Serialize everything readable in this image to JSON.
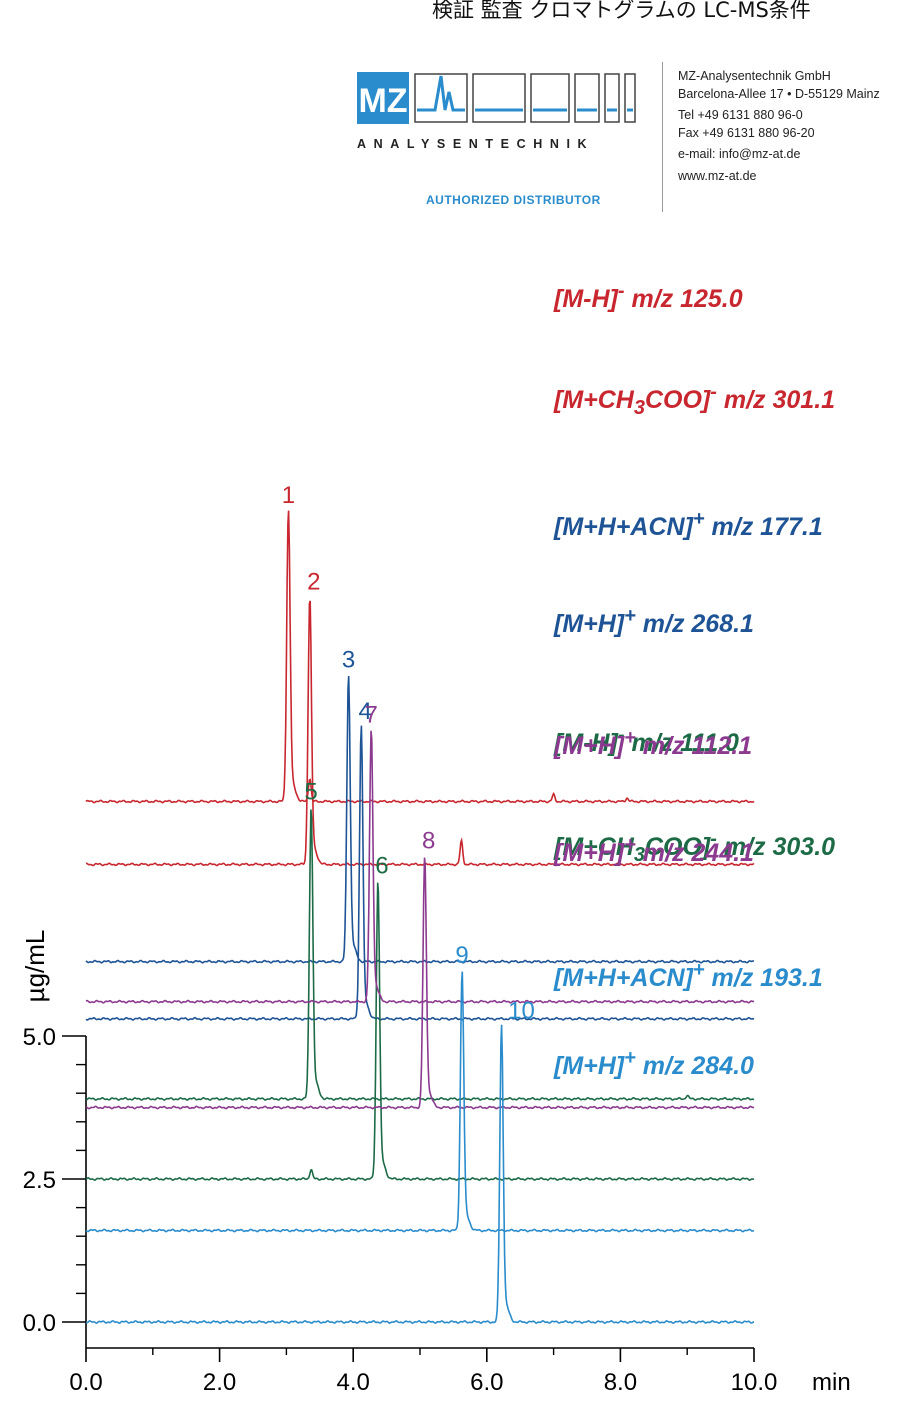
{
  "header": {
    "title": "検証 監査 クロマトグラムの LC-MS条件"
  },
  "distributor": {
    "brand_word": "ANALYSENTECHNIK",
    "tagline": "AUTHORIZED DISTRIBUTOR",
    "logo_letters": "MZ",
    "contact_lines": [
      "MZ-Analysentechnik GmbH",
      "Barcelona-Allee 17 • D-55129 Mainz",
      "Tel +49 6131 880 96-0",
      "Fax +49 6131 880 96-20",
      "e-mail: info@mz-at.de",
      "www.mz-at.de"
    ]
  },
  "colors": {
    "red": "#c8272f",
    "navy": "#1e5496",
    "green": "#1c6b46",
    "purple": "#8b3a8f",
    "cyan": "#2a8ccc",
    "axis": "#000000"
  },
  "chart_data": {
    "type": "line",
    "xlabel": "min",
    "ylabel": "µg/mL",
    "xlim": [
      0.0,
      10.0
    ],
    "ylim": [
      0.0,
      5.0
    ],
    "x_ticks": [
      "0.0",
      "2.0",
      "4.0",
      "6.0",
      "8.0",
      "10.0"
    ],
    "y_ticks": [
      "0.0",
      "2.5",
      "5.0"
    ],
    "series": [
      {
        "name": "[M-H]- m/z 125.0",
        "ion": "[M-H]",
        "charge": "-",
        "mz": "m/z 125.0",
        "color": "red",
        "baseline": 9.1,
        "peaks": [
          {
            "label": "1",
            "rt": 3.03,
            "height": 4.97
          },
          {
            "label": "",
            "rt": 3.35,
            "height": 0.41
          },
          {
            "label": "",
            "rt": 7.0,
            "height": 0.12
          },
          {
            "label": "",
            "rt": 8.1,
            "height": 0.06
          }
        ]
      },
      {
        "name": "[M+CH3COO]- m/z 301.1",
        "ion": "[M+CH3COO]",
        "charge": "-",
        "mz": "m/z 301.1",
        "color": "red",
        "baseline": 8.0,
        "peaks": [
          {
            "label": "2",
            "rt": 3.35,
            "height": 4.56
          },
          {
            "label": "",
            "rt": 5.62,
            "height": 0.41
          }
        ]
      },
      {
        "name": "[M+H+ACN]+ m/z 177.1",
        "ion": "[M+H+ACN]",
        "charge": "+",
        "mz": "m/z 177.1",
        "color": "navy",
        "baseline": 6.3,
        "peaks": [
          {
            "label": "3",
            "rt": 3.93,
            "height": 4.9
          }
        ]
      },
      {
        "name": "[M+H]+ m/z 268.1",
        "ion": "[M+H]",
        "charge": "+",
        "mz": "m/z 268.1",
        "color": "navy",
        "baseline": 5.3,
        "peaks": [
          {
            "label": "4",
            "rt": 4.12,
            "height": 5.0
          }
        ]
      },
      {
        "name": "[M-H]- m/z 111.0",
        "ion": "[M-H]",
        "charge": "-",
        "mz": "m/z 111.0",
        "color": "green",
        "baseline": 3.9,
        "peaks": [
          {
            "label": "5",
            "rt": 3.37,
            "height": 4.99
          },
          {
            "label": "",
            "rt": 9.0,
            "height": 0.06
          }
        ]
      },
      {
        "name": "[M+CH3COO]- m/z 303.0",
        "ion": "[M+CH3COO]",
        "charge": "-",
        "mz": "m/z 303.0",
        "color": "green",
        "baseline": 2.5,
        "peaks": [
          {
            "label": "6",
            "rt": 4.37,
            "height": 5.1
          },
          {
            "label": "",
            "rt": 3.37,
            "height": 0.17
          }
        ]
      },
      {
        "name": "[M+H]+ m/z 112.1",
        "ion": "[M+H]",
        "charge": "+",
        "mz": "m/z 112.1",
        "color": "purple",
        "baseline": 5.6,
        "peaks": [
          {
            "label": "7",
            "rt": 4.27,
            "height": 4.64
          }
        ]
      },
      {
        "name": "[M+H]+ m/z 244.1",
        "ion": "[M+H]",
        "charge": "+",
        "mz": "m/z 244.1",
        "color": "purple",
        "baseline": 3.75,
        "peaks": [
          {
            "label": "8",
            "rt": 5.07,
            "height": 4.28
          }
        ]
      },
      {
        "name": "[M+H+ACN]+ m/z 193.1",
        "ion": "[M+H+ACN]",
        "charge": "+",
        "mz": "m/z 193.1",
        "color": "cyan",
        "baseline": 1.6,
        "peaks": [
          {
            "label": "9",
            "rt": 5.63,
            "height": 4.43
          }
        ]
      },
      {
        "name": "[M+H]+ m/z 284.0",
        "ion": "[M+H]",
        "charge": "+",
        "mz": "m/z 284.0",
        "color": "cyan",
        "baseline": 0.0,
        "peaks": [
          {
            "label": "10",
            "rt": 6.22,
            "height": 5.06
          }
        ]
      }
    ]
  }
}
